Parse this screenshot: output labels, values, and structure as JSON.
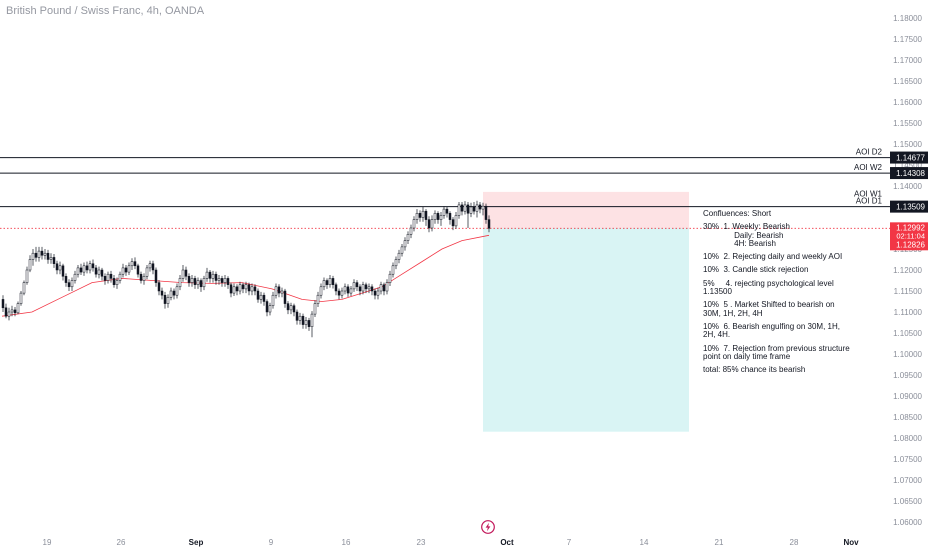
{
  "header": {
    "symbol_title": "British Pound / Swiss Franc, 4h, OANDA"
  },
  "price_axis": {
    "ticks": [
      "1.18000",
      "1.17500",
      "1.17000",
      "1.16500",
      "1.16000",
      "1.15500",
      "1.15000",
      "1.14500",
      "1.14000",
      "1.13500",
      "1.13000",
      "1.12500",
      "1.12000",
      "1.11500",
      "1.11000",
      "1.10500",
      "1.10000",
      "1.09500",
      "1.09000",
      "1.08500",
      "1.08000",
      "1.07500",
      "1.07000",
      "1.06500",
      "1.06000"
    ],
    "labels": {
      "aoi_d2": "1.14677",
      "aoi_w2": "1.14308",
      "aoi_d1": "1.13509",
      "current_price": "1.12992",
      "countdown": "02:11:04",
      "ma_value": "1.12826"
    }
  },
  "time_axis": {
    "ticks": [
      "19",
      "26",
      "Sep",
      "9",
      "16",
      "23",
      "Oct",
      "7",
      "14",
      "21",
      "28",
      "Nov"
    ]
  },
  "horizontal_levels": [
    {
      "name": "aoi-d2",
      "label": "AOI D2",
      "price": 1.14677
    },
    {
      "name": "aoi-w2",
      "label": "AOI W2",
      "price": 1.14308
    },
    {
      "name": "aoi-w1",
      "label": "AOI W1",
      "price": 1.13509
    },
    {
      "name": "aoi-d1",
      "label": "AOI D1",
      "price": 1.13509
    }
  ],
  "confluences": {
    "title": "Confluences: Short",
    "lines": [
      "30%  1. Weekly: Bearish",
      "              Daily: Bearish",
      "              4H: Bearish",
      "",
      "10%  2. Rejecting daily and weekly AOI",
      "",
      "10%  3. Candle stick rejection",
      "",
      "5%     4. rejecting psychological level",
      "1.13500",
      "",
      "10%  5 . Market Shifted to bearish on",
      "30M, 1H, 2H, 4H",
      "",
      "10%  6. Bearish engulfing on 30M, 1H,",
      "2H, 4H.",
      "",
      "10%  7. Rejection from previous structure",
      "point on daily time frame",
      "",
      "total: 85% chance its bearish"
    ]
  },
  "colors": {
    "bull": "#131722",
    "bear": "#131722",
    "ma_line": "#f23645",
    "current_price": "#f23645",
    "stop_zone": "#fde2e4",
    "target_zone": "#d9f4f4",
    "level_label_bg": "#131722",
    "logo": "#c2185b"
  },
  "chart_data": {
    "type": "candlestick",
    "title": "British Pound / Swiss Franc, 4h, OANDA",
    "ylim": [
      1.06,
      1.18
    ],
    "x_ticks": [
      "19",
      "26",
      "Sep",
      "9",
      "16",
      "23",
      "Oct",
      "7",
      "14",
      "21",
      "28",
      "Nov"
    ],
    "moving_average": [
      [
        0,
        1.109
      ],
      [
        30,
        1.11
      ],
      [
        60,
        1.1135
      ],
      [
        90,
        1.117
      ],
      [
        120,
        1.118
      ],
      [
        150,
        1.1175
      ],
      [
        180,
        1.117
      ],
      [
        210,
        1.1168
      ],
      [
        240,
        1.117
      ],
      [
        270,
        1.1155
      ],
      [
        300,
        1.113
      ],
      [
        320,
        1.1125
      ],
      [
        340,
        1.113
      ],
      [
        360,
        1.1145
      ],
      [
        380,
        1.116
      ],
      [
        400,
        1.119
      ],
      [
        420,
        1.122
      ],
      [
        440,
        1.125
      ],
      [
        460,
        1.127
      ],
      [
        487,
        1.12826
      ]
    ],
    "candles": [
      [
        0,
        1.113,
        1.111,
        1.114,
        1.11
      ],
      [
        3,
        1.111,
        1.109,
        1.112,
        1.1085
      ],
      [
        6,
        1.109,
        1.11,
        1.111,
        1.108
      ],
      [
        9,
        1.11,
        1.1105,
        1.1115,
        1.109
      ],
      [
        12,
        1.1105,
        1.1098,
        1.1112,
        1.109
      ],
      [
        15,
        1.1098,
        1.112,
        1.1125,
        1.1095
      ],
      [
        18,
        1.112,
        1.1145,
        1.115,
        1.1115
      ],
      [
        21,
        1.1145,
        1.117,
        1.1175,
        1.114
      ],
      [
        24,
        1.117,
        1.12,
        1.1208,
        1.1165
      ],
      [
        27,
        1.12,
        1.1225,
        1.1235,
        1.1195
      ],
      [
        30,
        1.1225,
        1.124,
        1.125,
        1.121
      ],
      [
        33,
        1.124,
        1.123,
        1.1255,
        1.122
      ],
      [
        36,
        1.123,
        1.1245,
        1.1255,
        1.122
      ],
      [
        39,
        1.1245,
        1.1235,
        1.1255,
        1.1225
      ],
      [
        42,
        1.1235,
        1.124,
        1.125,
        1.1225
      ],
      [
        45,
        1.124,
        1.1225,
        1.1248,
        1.1215
      ],
      [
        48,
        1.1225,
        1.123,
        1.124,
        1.1215
      ],
      [
        51,
        1.123,
        1.1215,
        1.1238,
        1.1205
      ],
      [
        54,
        1.1215,
        1.12,
        1.1222,
        1.119
      ],
      [
        57,
        1.12,
        1.121,
        1.122,
        1.119
      ],
      [
        60,
        1.121,
        1.1185,
        1.1215,
        1.1175
      ],
      [
        63,
        1.1185,
        1.117,
        1.1192,
        1.116
      ],
      [
        66,
        1.117,
        1.116,
        1.1178,
        1.115
      ],
      [
        69,
        1.116,
        1.1175,
        1.1182,
        1.115
      ],
      [
        72,
        1.1175,
        1.119,
        1.1198,
        1.1168
      ],
      [
        75,
        1.119,
        1.1205,
        1.1212,
        1.1182
      ],
      [
        78,
        1.1205,
        1.1195,
        1.1215,
        1.1188
      ],
      [
        81,
        1.1195,
        1.121,
        1.1218,
        1.1186
      ],
      [
        84,
        1.121,
        1.12,
        1.122,
        1.1192
      ],
      [
        87,
        1.12,
        1.1215,
        1.1222,
        1.1192
      ],
      [
        90,
        1.1215,
        1.1205,
        1.1225,
        1.1196
      ],
      [
        93,
        1.1205,
        1.119,
        1.1212,
        1.1182
      ],
      [
        96,
        1.119,
        1.12,
        1.1208,
        1.118
      ],
      [
        99,
        1.12,
        1.1185,
        1.1205,
        1.1175
      ],
      [
        102,
        1.1185,
        1.1175,
        1.1192,
        1.1165
      ],
      [
        105,
        1.1175,
        1.119,
        1.1196,
        1.1168
      ],
      [
        108,
        1.119,
        1.118,
        1.1198,
        1.117
      ],
      [
        111,
        1.118,
        1.1165,
        1.1188,
        1.1158
      ],
      [
        114,
        1.1165,
        1.1175,
        1.1182,
        1.1155
      ],
      [
        117,
        1.1175,
        1.119,
        1.1196,
        1.1168
      ],
      [
        120,
        1.119,
        1.1205,
        1.1215,
        1.1182
      ],
      [
        123,
        1.1205,
        1.1195,
        1.1212,
        1.1186
      ],
      [
        126,
        1.1195,
        1.121,
        1.1218,
        1.1188
      ],
      [
        129,
        1.121,
        1.122,
        1.1228,
        1.12
      ],
      [
        132,
        1.122,
        1.121,
        1.123,
        1.1202
      ],
      [
        135,
        1.121,
        1.119,
        1.1215,
        1.1182
      ],
      [
        138,
        1.119,
        1.1175,
        1.1196,
        1.1168
      ],
      [
        141,
        1.1175,
        1.1185,
        1.1192,
        1.1165
      ],
      [
        144,
        1.1185,
        1.1205,
        1.1212,
        1.1178
      ],
      [
        147,
        1.1205,
        1.1215,
        1.1222,
        1.1196
      ],
      [
        150,
        1.1215,
        1.12,
        1.1222,
        1.119
      ],
      [
        153,
        1.12,
        1.117,
        1.1206,
        1.116
      ],
      [
        156,
        1.117,
        1.115,
        1.1176,
        1.114
      ],
      [
        159,
        1.115,
        1.114,
        1.1158,
        1.113
      ],
      [
        162,
        1.114,
        1.112,
        1.1148,
        1.1108
      ],
      [
        165,
        1.112,
        1.1135,
        1.1142,
        1.111
      ],
      [
        168,
        1.1135,
        1.115,
        1.1158,
        1.1128
      ],
      [
        171,
        1.115,
        1.114,
        1.1156,
        1.113
      ],
      [
        174,
        1.114,
        1.116,
        1.1168,
        1.1132
      ],
      [
        177,
        1.116,
        1.118,
        1.1188,
        1.1152
      ],
      [
        180,
        1.118,
        1.12,
        1.1212,
        1.1172
      ],
      [
        183,
        1.12,
        1.1185,
        1.1208,
        1.1176
      ],
      [
        186,
        1.1185,
        1.117,
        1.1192,
        1.116
      ],
      [
        189,
        1.117,
        1.118,
        1.1188,
        1.116
      ],
      [
        192,
        1.118,
        1.1165,
        1.1186,
        1.1155
      ],
      [
        195,
        1.1165,
        1.1175,
        1.1182,
        1.1155
      ],
      [
        198,
        1.1175,
        1.116,
        1.118,
        1.1148
      ],
      [
        201,
        1.116,
        1.118,
        1.1186,
        1.1152
      ],
      [
        204,
        1.118,
        1.1195,
        1.1205,
        1.1172
      ],
      [
        207,
        1.1195,
        1.118,
        1.12,
        1.117
      ],
      [
        210,
        1.118,
        1.119,
        1.1198,
        1.117
      ],
      [
        213,
        1.119,
        1.1175,
        1.1196,
        1.1165
      ],
      [
        216,
        1.1175,
        1.118,
        1.1188,
        1.1165
      ],
      [
        219,
        1.118,
        1.117,
        1.1186,
        1.116
      ],
      [
        222,
        1.117,
        1.118,
        1.1188,
        1.116
      ],
      [
        225,
        1.118,
        1.1165,
        1.1185,
        1.1155
      ],
      [
        228,
        1.1165,
        1.1145,
        1.117,
        1.1135
      ],
      [
        231,
        1.1145,
        1.116,
        1.1168,
        1.1138
      ],
      [
        234,
        1.116,
        1.115,
        1.1166,
        1.114
      ],
      [
        237,
        1.115,
        1.1165,
        1.1172,
        1.1142
      ],
      [
        240,
        1.1165,
        1.1155,
        1.117,
        1.1145
      ],
      [
        243,
        1.1155,
        1.1165,
        1.1172,
        1.1145
      ],
      [
        246,
        1.1165,
        1.115,
        1.117,
        1.114
      ],
      [
        249,
        1.115,
        1.116,
        1.1168,
        1.114
      ],
      [
        252,
        1.116,
        1.115,
        1.1166,
        1.114
      ],
      [
        255,
        1.115,
        1.113,
        1.1156,
        1.1122
      ],
      [
        258,
        1.113,
        1.114,
        1.1148,
        1.112
      ],
      [
        261,
        1.114,
        1.1125,
        1.1146,
        1.1115
      ],
      [
        264,
        1.1125,
        1.11,
        1.113,
        1.109
      ],
      [
        267,
        1.11,
        1.1115,
        1.1122,
        1.1092
      ],
      [
        270,
        1.1115,
        1.114,
        1.1148,
        1.1108
      ],
      [
        273,
        1.114,
        1.116,
        1.1168,
        1.1132
      ],
      [
        276,
        1.116,
        1.1145,
        1.1166,
        1.1135
      ],
      [
        279,
        1.1145,
        1.115,
        1.1158,
        1.1135
      ],
      [
        282,
        1.115,
        1.112,
        1.1155,
        1.111
      ],
      [
        285,
        1.112,
        1.1105,
        1.1126,
        1.1095
      ],
      [
        288,
        1.1105,
        1.1115,
        1.1122,
        1.1095
      ],
      [
        291,
        1.1115,
        1.11,
        1.112,
        1.109
      ],
      [
        294,
        1.11,
        1.108,
        1.1106,
        1.107
      ],
      [
        297,
        1.108,
        1.109,
        1.1098,
        1.107
      ],
      [
        300,
        1.109,
        1.107,
        1.1096,
        1.106
      ],
      [
        303,
        1.107,
        1.108,
        1.1088,
        1.106
      ],
      [
        306,
        1.108,
        1.1065,
        1.1086,
        1.1055
      ],
      [
        309,
        1.1065,
        1.1095,
        1.1102,
        1.104
      ],
      [
        312,
        1.1095,
        1.112,
        1.1128,
        1.1088
      ],
      [
        315,
        1.112,
        1.114,
        1.1148,
        1.1112
      ],
      [
        318,
        1.114,
        1.116,
        1.1168,
        1.1132
      ],
      [
        321,
        1.116,
        1.1175,
        1.1182,
        1.1152
      ],
      [
        324,
        1.1175,
        1.1165,
        1.118,
        1.1155
      ],
      [
        327,
        1.1165,
        1.118,
        1.1188,
        1.1158
      ],
      [
        330,
        1.118,
        1.1165,
        1.1186,
        1.1156
      ],
      [
        333,
        1.1165,
        1.115,
        1.117,
        1.114
      ],
      [
        336,
        1.115,
        1.114,
        1.1156,
        1.113
      ],
      [
        339,
        1.114,
        1.115,
        1.1158,
        1.1132
      ],
      [
        342,
        1.115,
        1.116,
        1.1168,
        1.1142
      ],
      [
        345,
        1.116,
        1.1145,
        1.1166,
        1.1136
      ],
      [
        348,
        1.1145,
        1.1155,
        1.1162,
        1.1138
      ],
      [
        351,
        1.1155,
        1.117,
        1.1178,
        1.1148
      ],
      [
        354,
        1.117,
        1.116,
        1.1176,
        1.115
      ],
      [
        357,
        1.116,
        1.115,
        1.1166,
        1.114
      ],
      [
        360,
        1.115,
        1.1165,
        1.1172,
        1.1142
      ],
      [
        363,
        1.1165,
        1.1155,
        1.117,
        1.1145
      ],
      [
        366,
        1.1155,
        1.116,
        1.1168,
        1.1145
      ],
      [
        369,
        1.116,
        1.115,
        1.1166,
        1.114
      ],
      [
        372,
        1.115,
        1.114,
        1.1156,
        1.113
      ],
      [
        375,
        1.114,
        1.115,
        1.1158,
        1.113
      ],
      [
        378,
        1.115,
        1.1165,
        1.1172,
        1.1142
      ],
      [
        381,
        1.1165,
        1.115,
        1.117,
        1.114
      ],
      [
        384,
        1.115,
        1.117,
        1.1178,
        1.1142
      ],
      [
        387,
        1.117,
        1.119,
        1.1198,
        1.1162
      ],
      [
        390,
        1.119,
        1.121,
        1.1218,
        1.1182
      ],
      [
        393,
        1.121,
        1.1225,
        1.1232,
        1.1202
      ],
      [
        396,
        1.1225,
        1.124,
        1.1248,
        1.1216
      ],
      [
        399,
        1.124,
        1.1255,
        1.1262,
        1.1232
      ],
      [
        402,
        1.1255,
        1.127,
        1.1278,
        1.1246
      ],
      [
        405,
        1.127,
        1.1285,
        1.1292,
        1.1262
      ],
      [
        408,
        1.1285,
        1.13,
        1.1308,
        1.1276
      ],
      [
        411,
        1.13,
        1.132,
        1.1328,
        1.1292
      ],
      [
        414,
        1.132,
        1.1335,
        1.1345,
        1.131
      ],
      [
        417,
        1.1335,
        1.1325,
        1.1342,
        1.1315
      ],
      [
        420,
        1.1325,
        1.134,
        1.135,
        1.1315
      ],
      [
        423,
        1.134,
        1.132,
        1.1345,
        1.1305
      ],
      [
        426,
        1.132,
        1.13,
        1.1328,
        1.129
      ],
      [
        429,
        1.13,
        1.132,
        1.133,
        1.1292
      ],
      [
        432,
        1.132,
        1.1335,
        1.1342,
        1.131
      ],
      [
        435,
        1.1335,
        1.132,
        1.134,
        1.131
      ],
      [
        438,
        1.132,
        1.133,
        1.1338,
        1.1305
      ],
      [
        441,
        1.133,
        1.1345,
        1.1352,
        1.1322
      ],
      [
        444,
        1.1345,
        1.1335,
        1.135,
        1.1325
      ],
      [
        447,
        1.1335,
        1.132,
        1.134,
        1.1308
      ],
      [
        450,
        1.132,
        1.1305,
        1.1326,
        1.1295
      ],
      [
        453,
        1.1305,
        1.133,
        1.1338,
        1.1298
      ],
      [
        456,
        1.133,
        1.1355,
        1.1362,
        1.1322
      ],
      [
        459,
        1.1355,
        1.134,
        1.1362,
        1.133
      ],
      [
        462,
        1.134,
        1.1355,
        1.1364,
        1.1332
      ],
      [
        465,
        1.1355,
        1.1335,
        1.1362,
        1.13
      ],
      [
        468,
        1.1335,
        1.135,
        1.136,
        1.1326
      ],
      [
        471,
        1.135,
        1.134,
        1.1362,
        1.1332
      ],
      [
        474,
        1.134,
        1.1355,
        1.1365,
        1.1325
      ],
      [
        477,
        1.1355,
        1.1345,
        1.1362,
        1.1335
      ],
      [
        480,
        1.1345,
        1.1352,
        1.136,
        1.133
      ],
      [
        483,
        1.1352,
        1.132,
        1.1358,
        1.131
      ],
      [
        486,
        1.132,
        1.12992,
        1.133,
        1.129
      ]
    ],
    "trade_box": {
      "entry": 1.13,
      "stop": 1.1386,
      "target": 1.0815
    },
    "current_price": 1.12992,
    "grid": false
  }
}
